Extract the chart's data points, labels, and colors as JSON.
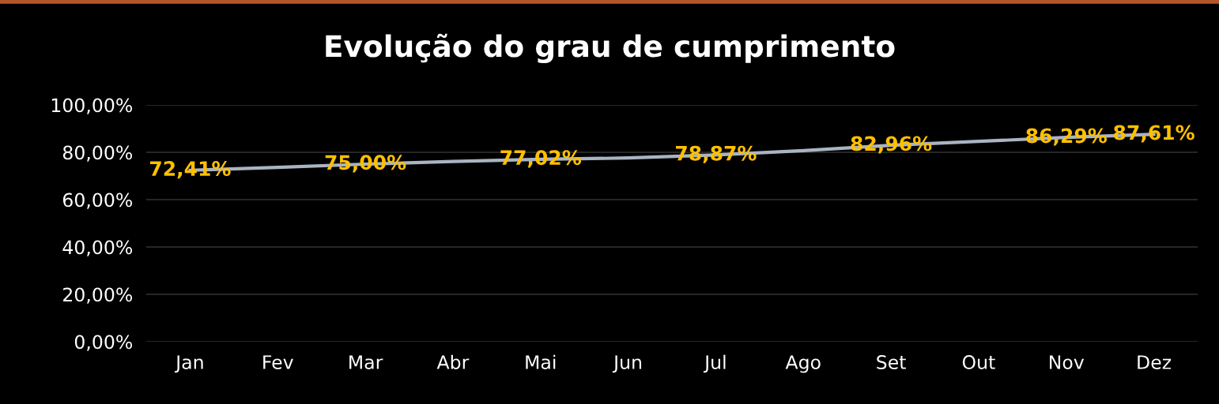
{
  "chart_data": {
    "type": "line",
    "title": "Evolução do grau de cumprimento",
    "categories": [
      "Jan",
      "Fev",
      "Mar",
      "Abr",
      "Mai",
      "Jun",
      "Jul",
      "Ago",
      "Set",
      "Out",
      "Nov",
      "Dez"
    ],
    "series": [
      {
        "color": "#a9b4c2",
        "values": [
          72.41,
          73.6,
          75.0,
          76.1,
          77.02,
          77.6,
          78.87,
          80.7,
          82.96,
          84.6,
          86.29,
          87.61
        ],
        "value_labels": [
          "72,41%",
          null,
          "75,00%",
          null,
          "77,02%",
          null,
          "78,87%",
          null,
          "82,96%",
          null,
          "86,29%",
          "87,61%"
        ]
      }
    ],
    "ylim": [
      0,
      100
    ],
    "yticks": [
      {
        "value": 0,
        "label": "0,00%"
      },
      {
        "value": 20,
        "label": "20,00%"
      },
      {
        "value": 40,
        "label": "40,00%"
      },
      {
        "value": 60,
        "label": "60,00%"
      },
      {
        "value": 80,
        "label": "80,00%"
      },
      {
        "value": 100,
        "label": "100,00%"
      }
    ],
    "grid": "y",
    "legend": false,
    "marker": "none",
    "line_style": "solid"
  }
}
